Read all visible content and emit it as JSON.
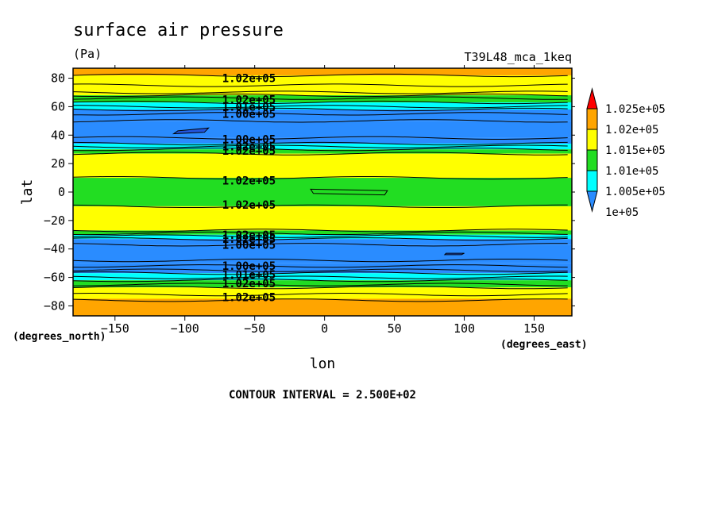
{
  "chart_data": {
    "type": "heatmap",
    "title": "surface air pressure",
    "units": "(Pa)",
    "run_label": "T39L48_mca_1keq",
    "xlabel": "lon",
    "ylabel": "lat",
    "x_units": "(degrees_east)",
    "y_units": "(degrees_north)",
    "xlim": [
      -180,
      177
    ],
    "ylim": [
      -87,
      87
    ],
    "x_ticks": [
      -150,
      -100,
      -50,
      0,
      50,
      100,
      150
    ],
    "y_ticks": [
      -80,
      -60,
      -40,
      -20,
      0,
      20,
      40,
      60,
      80
    ],
    "x_tick_labels": [
      "−150",
      "−100",
      "−50",
      "0",
      "50",
      "100",
      "150"
    ],
    "y_tick_labels": [
      "−80",
      "−60",
      "−40",
      "−20",
      "0",
      "20",
      "40",
      "60",
      "80"
    ],
    "contour_interval_text": "CONTOUR INTERVAL = 2.500E+02",
    "colorbar": {
      "levels": [
        100000,
        100500,
        101000,
        101500,
        102000,
        102500
      ],
      "labels": [
        "1e+05",
        "1.005e+05",
        "1.01e+05",
        "1.015e+05",
        "1.02e+05",
        "1.025e+05"
      ],
      "colors": [
        "#2a8cff",
        "#00ffff",
        "#22dd22",
        "#ffff00",
        "#ffa500",
        "#ff0000"
      ],
      "under_color": "#2a8cff",
      "over_color": "#ff0000"
    },
    "zonal_bands": [
      {
        "lat": [
          82,
          87
        ],
        "value": 102250
      },
      {
        "lat": [
          68,
          82
        ],
        "value": 101750
      },
      {
        "lat": [
          63,
          68
        ],
        "value": 101250
      },
      {
        "lat": [
          58,
          63
        ],
        "value": 100750
      },
      {
        "lat": [
          50,
          58
        ],
        "value": 100250
      },
      {
        "lat": [
          38,
          50
        ],
        "value": 100100
      },
      {
        "lat": [
          34,
          38
        ],
        "value": 100250
      },
      {
        "lat": [
          30,
          34
        ],
        "value": 100750
      },
      {
        "lat": [
          27,
          30
        ],
        "value": 101250
      },
      {
        "lat": [
          10,
          27
        ],
        "value": 101750
      },
      {
        "lat": [
          -10,
          10
        ],
        "value": 101250
      },
      {
        "lat": [
          -27,
          -10
        ],
        "value": 101750
      },
      {
        "lat": [
          -30,
          -27
        ],
        "value": 101250
      },
      {
        "lat": [
          -33,
          -30
        ],
        "value": 100750
      },
      {
        "lat": [
          -37,
          -33
        ],
        "value": 100250
      },
      {
        "lat": [
          -50,
          -37
        ],
        "value": 100100
      },
      {
        "lat": [
          -57,
          -50
        ],
        "value": 100250
      },
      {
        "lat": [
          -62,
          -57
        ],
        "value": 100750
      },
      {
        "lat": [
          -67,
          -62
        ],
        "value": 101250
      },
      {
        "lat": [
          -75,
          -67
        ],
        "value": 101750
      },
      {
        "lat": [
          -87,
          -75
        ],
        "value": 102250
      }
    ],
    "contour_levels_drawn_lat": [
      82,
      75,
      70,
      68,
      66,
      63,
      60,
      58,
      55,
      50,
      38,
      34,
      32,
      30,
      27,
      10,
      -10,
      -27,
      -29,
      -31,
      -33,
      -37,
      -48,
      -52,
      -55,
      -57,
      -60,
      -62,
      -65,
      -67,
      -72,
      -76
    ],
    "contour_labels": [
      {
        "text": "1.02e+05",
        "lon": -75,
        "lat": 80
      },
      {
        "text": "1.02e+05",
        "lon": -75,
        "lat": 65
      },
      {
        "text": "1.01e+05",
        "lon": -75,
        "lat": 60
      },
      {
        "text": "1.00e+05",
        "lon": -75,
        "lat": 55
      },
      {
        "text": "1.00e+05",
        "lon": -75,
        "lat": 37
      },
      {
        "text": "1.02e+05",
        "lon": -75,
        "lat": 32
      },
      {
        "text": "1.02e+05",
        "lon": -75,
        "lat": 29
      },
      {
        "text": "1.02e+05",
        "lon": -75,
        "lat": 8
      },
      {
        "text": "1.02e+05",
        "lon": -75,
        "lat": -9
      },
      {
        "text": "1.02e+05",
        "lon": -75,
        "lat": -30
      },
      {
        "text": "1.02e+05",
        "lon": -75,
        "lat": -33
      },
      {
        "text": "1.00e+05",
        "lon": -75,
        "lat": -37
      },
      {
        "text": "1.00e+05",
        "lon": -75,
        "lat": -52
      },
      {
        "text": "1.01e+05",
        "lon": -75,
        "lat": -58
      },
      {
        "text": "1.02e+05",
        "lon": -75,
        "lat": -64
      },
      {
        "text": "1.02e+05",
        "lon": -75,
        "lat": -74
      }
    ],
    "grid": false
  }
}
